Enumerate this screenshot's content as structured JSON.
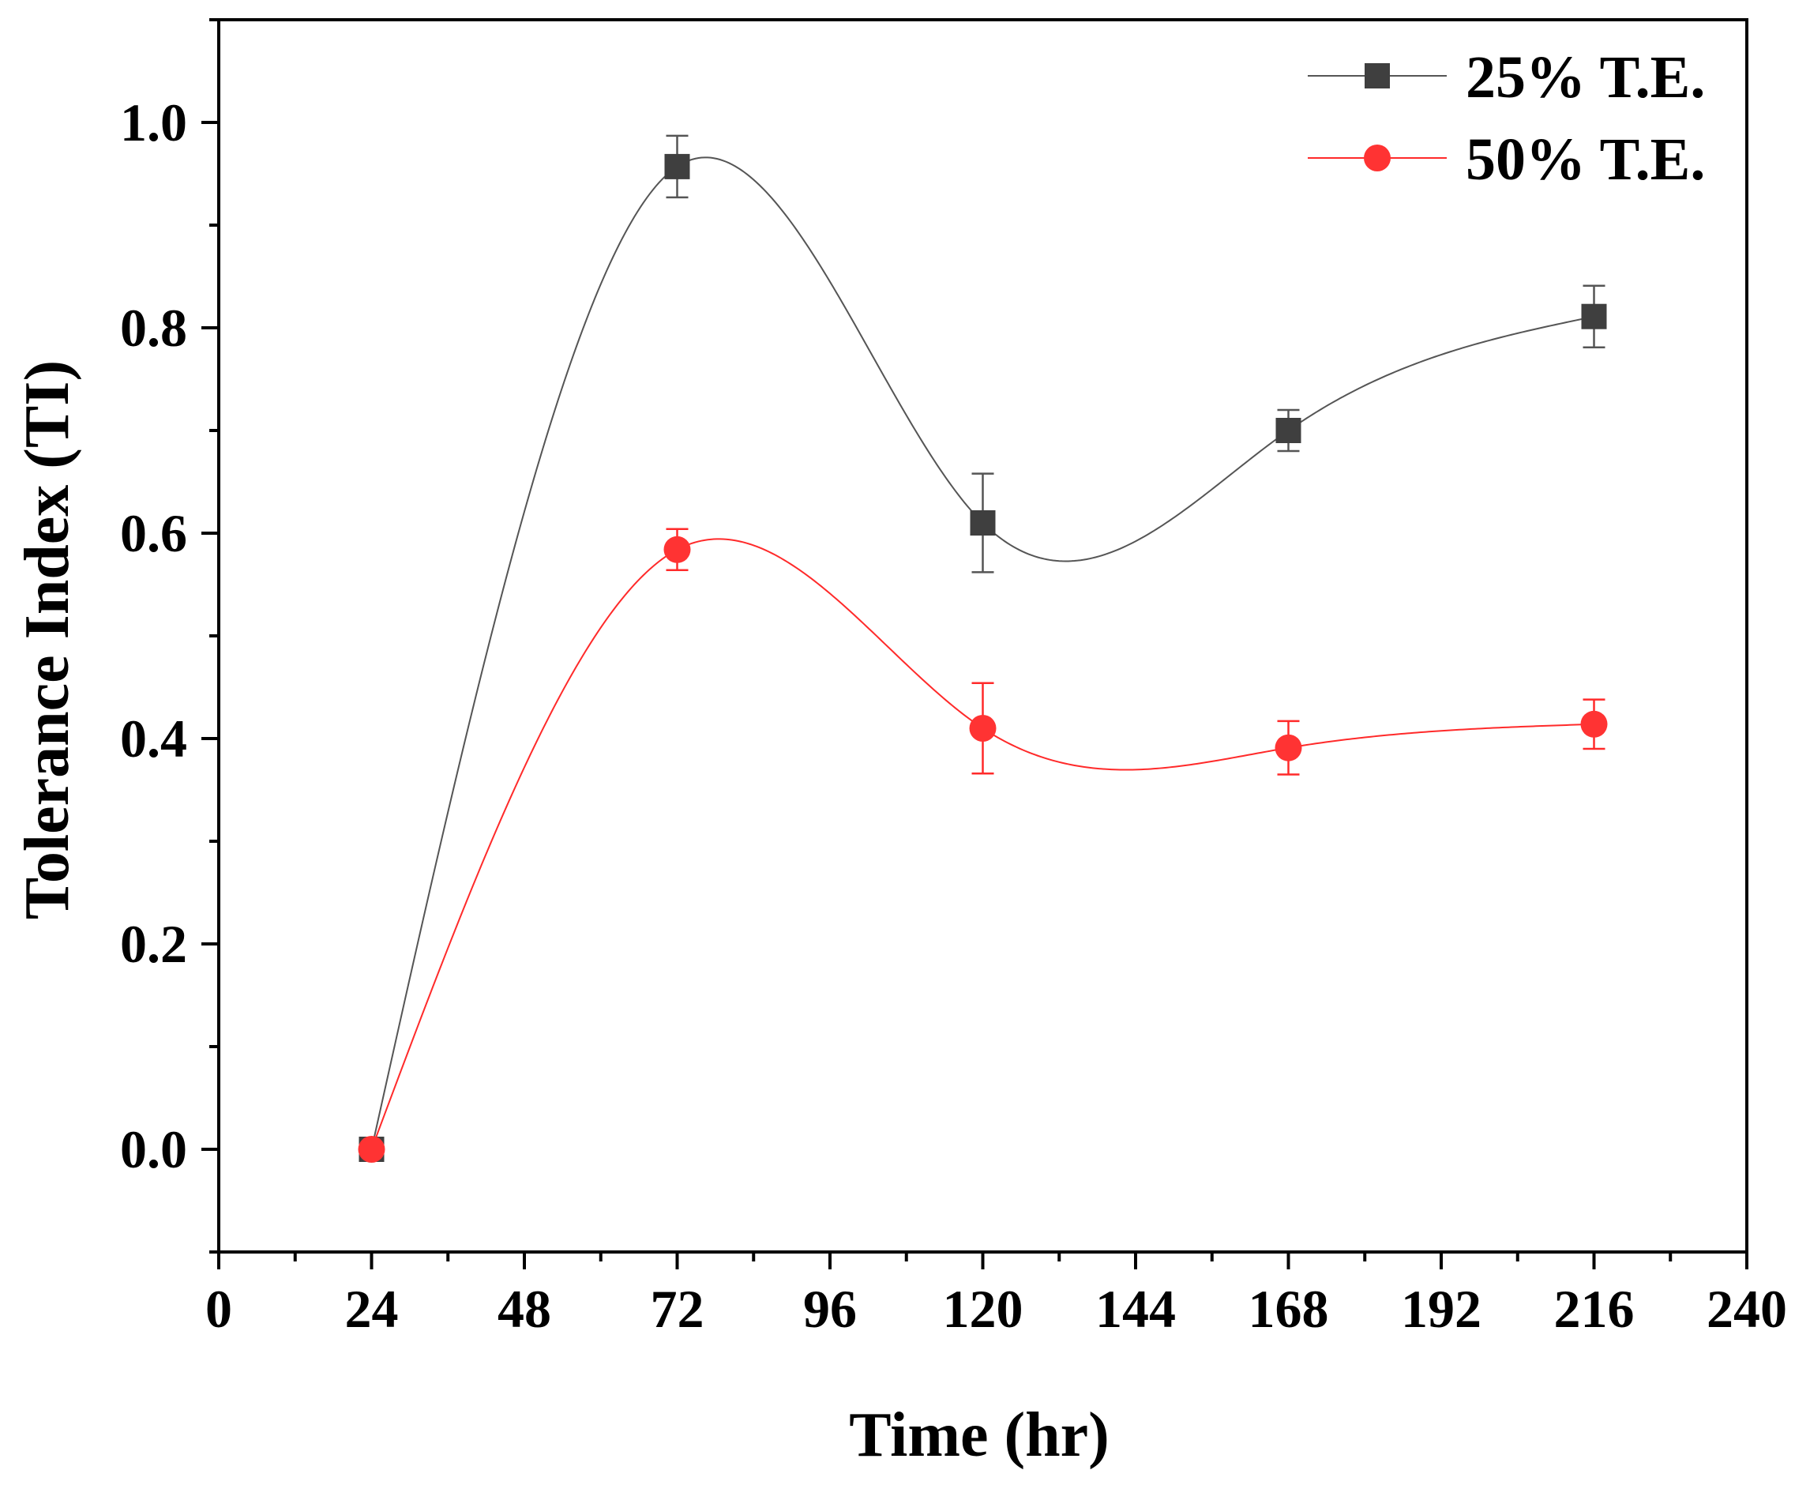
{
  "chart_data": {
    "type": "line",
    "title": "",
    "xlabel": "Time (hr)",
    "ylabel": "Tolerance Index (TI)",
    "xlim": [
      0,
      240
    ],
    "ylim": [
      -0.1,
      1.1
    ],
    "xticks": [
      0,
      24,
      48,
      72,
      96,
      120,
      144,
      168,
      192,
      216,
      240
    ],
    "xtick_labels": [
      "0",
      "24",
      "48",
      "72",
      "96",
      "120",
      "144",
      "168",
      "192",
      "216",
      "240"
    ],
    "yticks": [
      0.0,
      0.2,
      0.4,
      0.6,
      0.8,
      1.0
    ],
    "ytick_labels": [
      "0.0",
      "0.2",
      "0.4",
      "0.6",
      "0.8",
      "1.0"
    ],
    "grid": false,
    "legend_position": "top-right",
    "x": [
      24,
      72,
      120,
      168,
      216
    ],
    "series": [
      {
        "name": "25% T.E.",
        "marker": "square",
        "color": "#3f3f3f",
        "line_color": "#555555",
        "values": [
          0.0,
          0.957,
          0.61,
          0.7,
          0.811
        ],
        "errors": [
          0.0,
          0.03,
          0.048,
          0.02,
          0.03
        ]
      },
      {
        "name": "50% T.E.",
        "marker": "circle",
        "color": "#ff3333",
        "line_color": "#ff2a2a",
        "values": [
          0.0,
          0.584,
          0.41,
          0.391,
          0.414
        ],
        "errors": [
          0.0,
          0.02,
          0.044,
          0.026,
          0.024
        ]
      }
    ]
  }
}
